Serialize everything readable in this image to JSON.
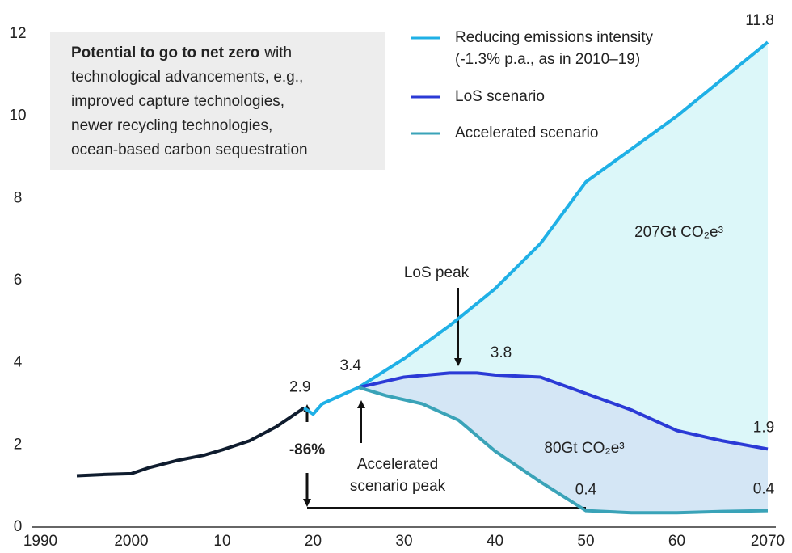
{
  "chart_data": {
    "type": "line",
    "xlim": [
      1990,
      2070
    ],
    "xticks": [
      1990,
      2000,
      {
        "value": 2010,
        "label": "10"
      },
      {
        "value": 2020,
        "label": "20"
      },
      {
        "value": 2030,
        "label": "30"
      },
      {
        "value": 2040,
        "label": "40"
      },
      {
        "value": 2050,
        "label": "50"
      },
      {
        "value": 2060,
        "label": "60"
      },
      2070
    ],
    "ylim": [
      0,
      12
    ],
    "yticks": [
      0,
      2,
      4,
      6,
      8,
      10,
      12
    ],
    "history": {
      "color": "#0f1c2e",
      "x": [
        1994,
        1997,
        2000,
        2002,
        2005,
        2008,
        2010,
        2013,
        2016,
        2019
      ],
      "values": [
        1.25,
        1.28,
        1.3,
        1.45,
        1.62,
        1.75,
        1.88,
        2.1,
        2.45,
        2.9
      ]
    },
    "series": [
      {
        "name": "Reducing emissions intensity (-1.3% p.a., as in 2010–19)",
        "color": "#1fb0e6",
        "fill": "#dcf7f9",
        "x": [
          2019,
          2020,
          2021,
          2025,
          2030,
          2035,
          2040,
          2045,
          2050,
          2055,
          2060,
          2065,
          2070
        ],
        "values": [
          2.9,
          2.75,
          3.0,
          3.4,
          4.1,
          4.9,
          5.8,
          6.9,
          8.4,
          9.2,
          10.0,
          10.9,
          11.8
        ]
      },
      {
        "name": "LoS scenario",
        "color": "#2b3ad6",
        "fill": "#d4e6f5",
        "x": [
          2025,
          2030,
          2035,
          2038,
          2040,
          2045,
          2050,
          2055,
          2060,
          2065,
          2070
        ],
        "values": [
          3.4,
          3.65,
          3.75,
          3.75,
          3.7,
          3.65,
          3.25,
          2.85,
          2.35,
          2.1,
          1.9
        ]
      },
      {
        "name": "Accelerated scenario",
        "color": "#3aa3b8",
        "x": [
          2025,
          2028,
          2032,
          2036,
          2040,
          2045,
          2050,
          2055,
          2060,
          2065,
          2070
        ],
        "values": [
          3.4,
          3.2,
          3.0,
          2.6,
          1.85,
          1.1,
          0.4,
          0.35,
          0.35,
          0.38,
          0.4
        ]
      }
    ],
    "point_labels": [
      {
        "x": 2019,
        "value": 2.9
      },
      {
        "x": 2025,
        "value": 3.4
      },
      {
        "x": 2038,
        "value": 3.8
      },
      {
        "x": 2070,
        "value": 11.8
      },
      {
        "x": 2070,
        "value": 1.9
      },
      {
        "x": 2050,
        "value": 0.4
      },
      {
        "x": 2070,
        "value": 0.4
      }
    ],
    "box": {
      "bold": "Potential to go to net zero",
      "lines": [
        "with",
        "technological advancements, e.g.,",
        "improved capture technologies,",
        "newer recycling technologies,",
        "ocean-based carbon sequestration"
      ]
    },
    "annotations": {
      "los_peak": "LoS peak",
      "acc_peak": [
        "Accelerated",
        "scenario peak"
      ],
      "reduction": "-86%",
      "area_upper": "207Gt CO₂e³",
      "area_lower": "80Gt CO₂e³"
    }
  }
}
